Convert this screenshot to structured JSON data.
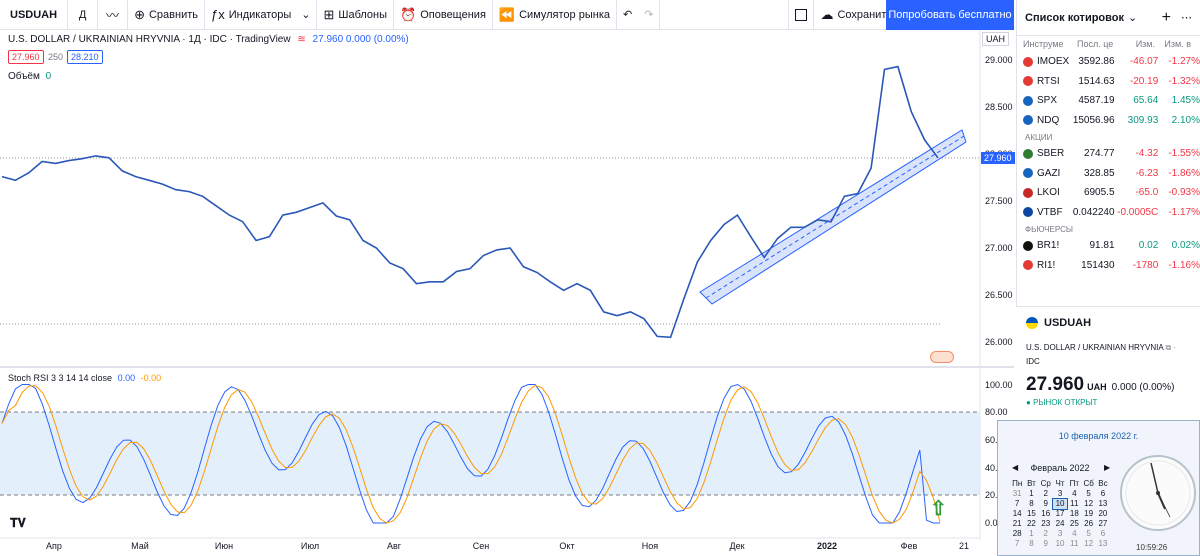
{
  "toolbar": {
    "symbol": "USDUAH",
    "interval": "Д",
    "compare": "Сравнить",
    "indicators": "Индикаторы",
    "templates": "Шаблоны",
    "alerts": "Оповещения",
    "replay": "Симулятор рынка",
    "save": "Сохранить",
    "try_free": "Попробовать бесплатно"
  },
  "legend": {
    "title": "U.S. DOLLAR / UKRAINIAN HRYVNIA · 1Д · IDC · TradingView",
    "ohlc": "27.960  0.000 (0.00%)",
    "bid": "27.960",
    "spread": "250",
    "ask": "28.210",
    "volume_label": "Объём",
    "volume_value": "0",
    "currency_btn": "UAH"
  },
  "price_axis": [
    "29.000",
    "28.500",
    "28.000",
    "27.500",
    "27.000",
    "26.500",
    "26.000"
  ],
  "price_tag": "27.960",
  "rsi": {
    "label": "Stoch RSI 3 3 14 14 close",
    "k": "0.00",
    "d": "-0.00",
    "axis": [
      "100.00",
      "80.00",
      "60.00",
      "40.00",
      "20.00",
      "0.00"
    ]
  },
  "months": [
    "Апр",
    "Май",
    "Июн",
    "Июл",
    "Авг",
    "Сен",
    "Окт",
    "Ноя",
    "Дек",
    "2022",
    "Фев",
    "21"
  ],
  "chart_data": {
    "type": "line",
    "title": "U.S. DOLLAR / UKRAINIAN HRYVNIA · 1Д · IDC",
    "ylabel": "UAH",
    "ylim": [
      25.95,
      29.2
    ],
    "series": [
      {
        "name": "USDUAH",
        "values": [
          27.76,
          27.72,
          27.8,
          27.92,
          27.9,
          27.93,
          27.95,
          27.98,
          27.96,
          27.82,
          27.76,
          27.72,
          27.68,
          27.62,
          27.6,
          27.55,
          27.45,
          27.35,
          27.28,
          27.08,
          27.12,
          27.35,
          27.38,
          27.43,
          27.48,
          27.34,
          27.3,
          27.08,
          27.0,
          26.84,
          26.78,
          26.62,
          26.64,
          26.64,
          26.75,
          26.78,
          26.92,
          26.98,
          27.0,
          26.8,
          26.74,
          26.64,
          26.55,
          26.62,
          26.55,
          26.32,
          26.28,
          26.32,
          26.25,
          26.06,
          26.05,
          26.46,
          26.85,
          27.08,
          27.25,
          27.35,
          27.12,
          26.9,
          27.1,
          27.22,
          27.22,
          27.3,
          27.28,
          27.55,
          27.58,
          27.85,
          28.9,
          28.93,
          28.45,
          28.15,
          27.96
        ]
      }
    ],
    "trend_channel": {
      "from": 26.45,
      "to": 27.96
    }
  },
  "watchlist": {
    "title": "Список котировок",
    "cols": [
      "Инструме",
      "Посл. це",
      "Изм.",
      "Изм. в"
    ],
    "indices": [
      {
        "sym": "IMOEX",
        "last": "3592.86",
        "chg": "-46.07",
        "pct": "-1.27%",
        "color": "#e53935"
      },
      {
        "sym": "RTSI",
        "last": "1514.63",
        "chg": "-20.19",
        "pct": "-1.32%",
        "color": "#e53935"
      },
      {
        "sym": "SPX",
        "last": "4587.19",
        "chg": "65.64",
        "pct": "1.45%",
        "color": "#1565c0"
      },
      {
        "sym": "NDQ",
        "last": "15056.96",
        "chg": "309.93",
        "pct": "2.10%",
        "color": "#1565c0"
      }
    ],
    "stocks_label": "АКЦИИ",
    "stocks": [
      {
        "sym": "SBER",
        "last": "274.77",
        "chg": "-4.32",
        "pct": "-1.55%",
        "color": "#2e7d32"
      },
      {
        "sym": "GAZI",
        "last": "328.85",
        "chg": "-6.23",
        "pct": "-1.86%",
        "color": "#1565c0"
      },
      {
        "sym": "LKOI",
        "last": "6905.5",
        "chg": "-65.0",
        "pct": "-0.93%",
        "color": "#c62828"
      },
      {
        "sym": "VTBF",
        "last": "0.042240",
        "chg": "-0.0005C",
        "pct": "-1.17%",
        "color": "#0d47a1"
      }
    ],
    "futures_label": "ФЬЮЧЕРСЫ",
    "futures": [
      {
        "sym": "BR1!",
        "last": "91.81",
        "chg": "0.02",
        "pct": "0.02%",
        "color": "#111111"
      },
      {
        "sym": "RI1!",
        "last": "151430",
        "chg": "-1780",
        "pct": "-1.16%",
        "color": "#e53935"
      }
    ]
  },
  "details": {
    "symbol": "USDUAH",
    "name": "U.S. DOLLAR / UKRAINIAN HRYVNIA",
    "exchange": "IDC",
    "price": "27.960",
    "currency": "UAH",
    "change": "0.000 (0.00%)",
    "status": "РЫНОК ОТКРЫТ"
  },
  "calendar": {
    "date_title": "10 февраля 2022 г.",
    "month": "Февраль 2022",
    "weekdays": [
      "Пн",
      "Вт",
      "Ср",
      "Чт",
      "Пт",
      "Сб",
      "Вс"
    ],
    "days": [
      "31",
      "1",
      "2",
      "3",
      "4",
      "5",
      "6",
      "7",
      "8",
      "9",
      "10",
      "11",
      "12",
      "13",
      "14",
      "15",
      "16",
      "17",
      "18",
      "19",
      "20",
      "21",
      "22",
      "23",
      "24",
      "25",
      "26",
      "27",
      "28",
      "1",
      "2",
      "3",
      "4",
      "5",
      "6",
      "7",
      "8",
      "9",
      "10",
      "11",
      "12",
      "13"
    ],
    "time": "10:59:26"
  }
}
